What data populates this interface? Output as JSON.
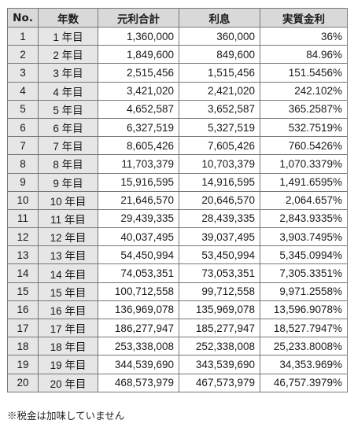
{
  "table": {
    "headers": [
      "No.",
      "年数",
      "元利合計",
      "利息",
      "実質金利"
    ],
    "rows": [
      [
        "1",
        "1 年目",
        "1,360,000",
        "360,000",
        "36%"
      ],
      [
        "2",
        "2 年目",
        "1,849,600",
        "849,600",
        "84.96%"
      ],
      [
        "3",
        "3 年目",
        "2,515,456",
        "1,515,456",
        "151.5456%"
      ],
      [
        "4",
        "4 年目",
        "3,421,020",
        "2,421,020",
        "242.102%"
      ],
      [
        "5",
        "5 年目",
        "4,652,587",
        "3,652,587",
        "365.2587%"
      ],
      [
        "6",
        "6 年目",
        "6,327,519",
        "5,327,519",
        "532.7519%"
      ],
      [
        "7",
        "7 年目",
        "8,605,426",
        "7,605,426",
        "760.5426%"
      ],
      [
        "8",
        "8 年目",
        "11,703,379",
        "10,703,379",
        "1,070.3379%"
      ],
      [
        "9",
        "9 年目",
        "15,916,595",
        "14,916,595",
        "1,491.6595%"
      ],
      [
        "10",
        "10 年目",
        "21,646,570",
        "20,646,570",
        "2,064.657%"
      ],
      [
        "11",
        "11 年目",
        "29,439,335",
        "28,439,335",
        "2,843.9335%"
      ],
      [
        "12",
        "12 年目",
        "40,037,495",
        "39,037,495",
        "3,903.7495%"
      ],
      [
        "13",
        "13 年目",
        "54,450,994",
        "53,450,994",
        "5,345.0994%"
      ],
      [
        "14",
        "14 年目",
        "74,053,351",
        "73,053,351",
        "7,305.3351%"
      ],
      [
        "15",
        "15 年目",
        "100,712,558",
        "99,712,558",
        "9,971.2558%"
      ],
      [
        "16",
        "16 年目",
        "136,969,078",
        "135,969,078",
        "13,596.9078%"
      ],
      [
        "17",
        "17 年目",
        "186,277,947",
        "185,277,947",
        "18,527.7947%"
      ],
      [
        "18",
        "18 年目",
        "253,338,008",
        "252,338,008",
        "25,233.8008%"
      ],
      [
        "19",
        "19 年目",
        "344,539,690",
        "343,539,690",
        "34,353.969%"
      ],
      [
        "20",
        "20 年目",
        "468,573,979",
        "467,573,979",
        "46,757.3979%"
      ]
    ]
  },
  "note": "※税金は加味していません"
}
